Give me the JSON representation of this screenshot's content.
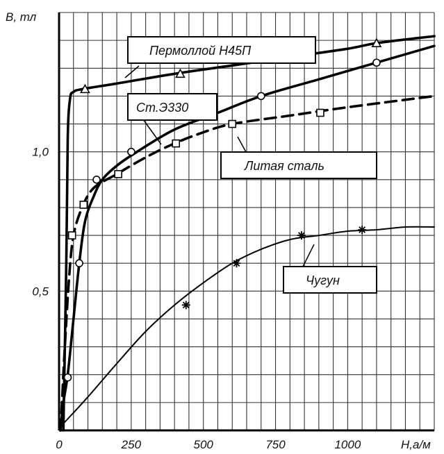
{
  "chart_data": {
    "type": "line",
    "title": "",
    "xlabel": "H,а/м",
    "ylabel": "B, тл",
    "xlim": [
      0,
      1300
    ],
    "ylim": [
      0,
      1.5
    ],
    "x_ticks": [
      {
        "value": 0,
        "label": "0"
      },
      {
        "value": 250,
        "label": "250"
      },
      {
        "value": 500,
        "label": "500"
      },
      {
        "value": 750,
        "label": "750"
      },
      {
        "value": 1000,
        "label": "1000"
      }
    ],
    "y_ticks": [
      {
        "value": 0.5,
        "label": "0,5"
      },
      {
        "value": 1.0,
        "label": "1,0"
      }
    ],
    "grid": true,
    "series": [
      {
        "name": "Пермоллой Н45П",
        "style": "solid-thick",
        "marker": "triangle",
        "points": [
          [
            15,
            0.0
          ],
          [
            25,
            0.6
          ],
          [
            30,
            1.05
          ],
          [
            38,
            1.19
          ],
          [
            50,
            1.215
          ],
          [
            80,
            1.225
          ],
          [
            200,
            1.245
          ],
          [
            400,
            1.28
          ],
          [
            600,
            1.31
          ],
          [
            800,
            1.34
          ],
          [
            1000,
            1.37
          ],
          [
            1100,
            1.39
          ],
          [
            1300,
            1.415
          ]
        ],
        "marked": [
          [
            90,
            1.225
          ],
          [
            420,
            1.28
          ],
          [
            1100,
            1.39
          ]
        ]
      },
      {
        "name": "Ст.Э330",
        "style": "solid-thick",
        "marker": "circle",
        "points": [
          [
            5,
            0.0
          ],
          [
            15,
            0.1
          ],
          [
            30,
            0.2
          ],
          [
            50,
            0.4
          ],
          [
            70,
            0.6
          ],
          [
            90,
            0.75
          ],
          [
            120,
            0.84
          ],
          [
            150,
            0.9
          ],
          [
            200,
            0.95
          ],
          [
            270,
            1.0
          ],
          [
            400,
            1.08
          ],
          [
            550,
            1.14
          ],
          [
            700,
            1.2
          ],
          [
            900,
            1.26
          ],
          [
            1100,
            1.32
          ],
          [
            1300,
            1.38
          ]
        ],
        "marked": [
          [
            30,
            0.19
          ],
          [
            70,
            0.6
          ],
          [
            130,
            0.9
          ],
          [
            250,
            1.0
          ],
          [
            700,
            1.2
          ],
          [
            1100,
            1.32
          ]
        ]
      },
      {
        "name": "Литая сталь",
        "style": "dashed-thick",
        "marker": "square",
        "points": [
          [
            5,
            0.0
          ],
          [
            10,
            0.1
          ],
          [
            20,
            0.3
          ],
          [
            35,
            0.55
          ],
          [
            50,
            0.7
          ],
          [
            80,
            0.8
          ],
          [
            120,
            0.87
          ],
          [
            200,
            0.92
          ],
          [
            300,
            0.98
          ],
          [
            400,
            1.03
          ],
          [
            500,
            1.07
          ],
          [
            600,
            1.1
          ],
          [
            800,
            1.13
          ],
          [
            1000,
            1.16
          ],
          [
            1300,
            1.2
          ]
        ],
        "marked": [
          [
            45,
            0.7
          ],
          [
            85,
            0.81
          ],
          [
            205,
            0.92
          ],
          [
            405,
            1.03
          ],
          [
            600,
            1.1
          ],
          [
            905,
            1.14
          ]
        ]
      },
      {
        "name": "Чугун",
        "style": "solid-thin",
        "marker": "star",
        "points": [
          [
            20,
            0.03
          ],
          [
            100,
            0.12
          ],
          [
            200,
            0.24
          ],
          [
            300,
            0.355
          ],
          [
            400,
            0.45
          ],
          [
            500,
            0.53
          ],
          [
            600,
            0.6
          ],
          [
            700,
            0.65
          ],
          [
            800,
            0.685
          ],
          [
            900,
            0.7
          ],
          [
            1000,
            0.715
          ],
          [
            1100,
            0.72
          ],
          [
            1200,
            0.73
          ],
          [
            1300,
            0.73
          ]
        ],
        "marked": [
          [
            440,
            0.45
          ],
          [
            615,
            0.6
          ],
          [
            840,
            0.7
          ],
          [
            1050,
            0.72
          ]
        ]
      }
    ]
  },
  "labels": {
    "permalloy": "Пермоллой Н45П",
    "steel_e330": "Ст.Э330",
    "cast_steel": "Литая сталь",
    "cast_iron": "Чугун"
  }
}
